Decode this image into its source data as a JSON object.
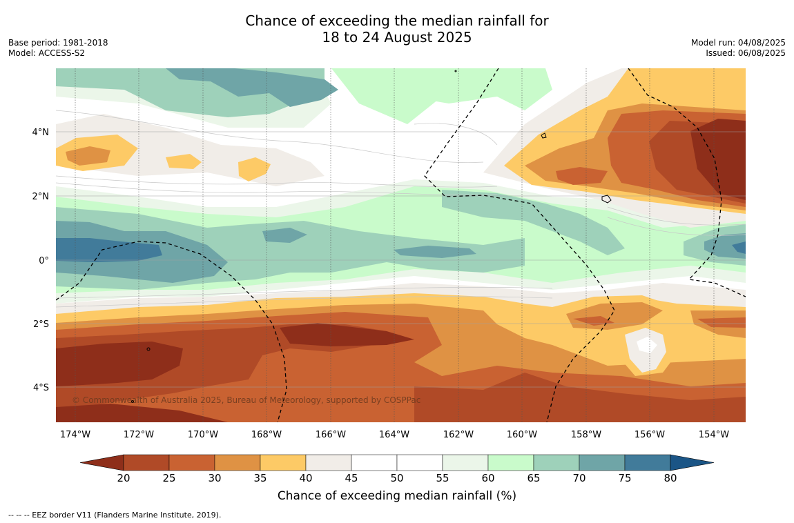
{
  "title_line1": "Chance of exceeding the median rainfall for",
  "title_line2": "18 to 24 August 2025",
  "base_period": "Base period: 1981-2018",
  "model": "Model: ACCESS-S2",
  "model_run": "Model run: 04/08/2025",
  "issued": "Issued: 06/08/2025",
  "copyright": "© Commonwealth of Australia 2025, Bureau of Meteorology, supported by COSPPac",
  "colorbar_label": "Chance of exceeding median rainfall (%)",
  "footnote": "--  --  -- EEZ border V11 (Flanders Marine Institute, 2019).",
  "lat_labels": [
    "4°N",
    "2°N",
    "0°",
    "2°S",
    "4°S"
  ],
  "lon_labels": [
    "174°W",
    "172°W",
    "170°W",
    "168°W",
    "166°W",
    "164°W",
    "162°W",
    "160°W",
    "158°W",
    "156°W",
    "154°W"
  ],
  "colorbar": {
    "ticks": [
      "20",
      "25",
      "30",
      "35",
      "40",
      "45",
      "50",
      "55",
      "60",
      "65",
      "70",
      "75",
      "80"
    ],
    "colors": [
      "#8e2e1a",
      "#b04a27",
      "#c96232",
      "#df9244",
      "#fdca66",
      "#f1ede8",
      "#ffffff",
      "#ffffff",
      "#ebf6e9",
      "#c9fbcb",
      "#9ed1ba",
      "#6fa5a7",
      "#417b9a",
      "#1b5586"
    ]
  }
}
